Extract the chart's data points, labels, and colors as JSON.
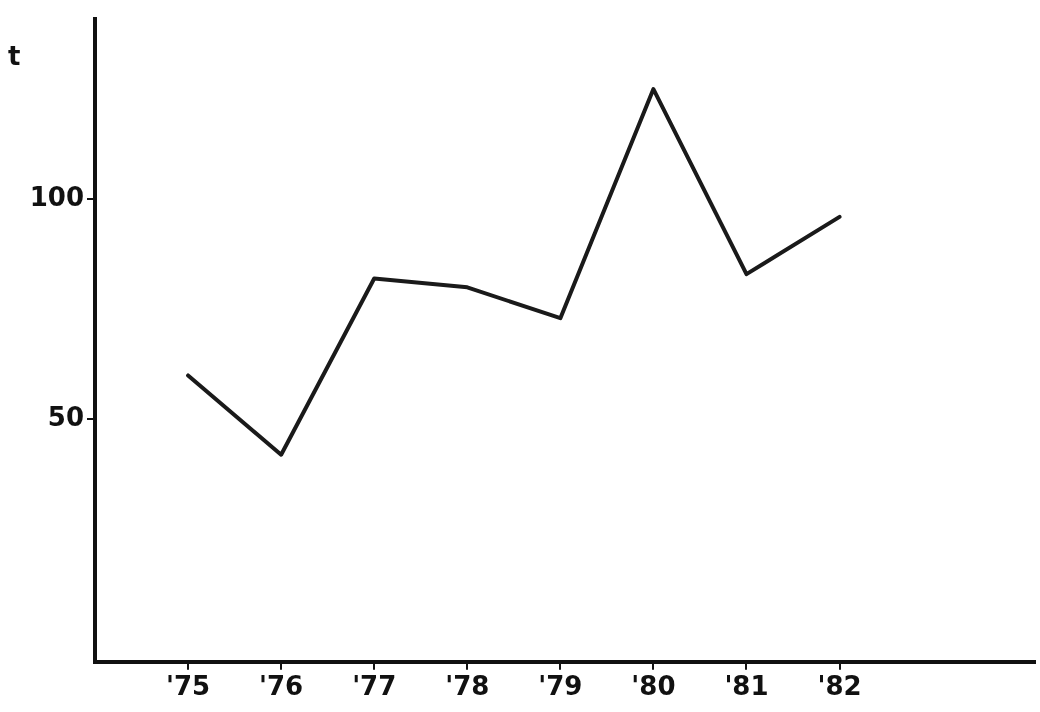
{
  "chart_data": {
    "type": "line",
    "ylabel": "t",
    "x": [
      1975,
      1976,
      1977,
      1978,
      1979,
      1980,
      1981,
      1982
    ],
    "values": [
      60,
      42,
      82,
      80,
      73,
      125,
      83,
      96
    ],
    "color": "#1a1a1a",
    "xlim": [
      1974,
      1984.1
    ],
    "xticks": [
      {
        "value": 1975,
        "label": "'75"
      },
      {
        "value": 1976,
        "label": "'76"
      },
      {
        "value": 1977,
        "label": "'77"
      },
      {
        "value": 1978,
        "label": "'78"
      },
      {
        "value": 1979,
        "label": "'79"
      },
      {
        "value": 1980,
        "label": "'80"
      },
      {
        "value": 1981,
        "label": "'81"
      },
      {
        "value": 1982,
        "label": "'82"
      }
    ],
    "ylim": [
      -5,
      141
    ],
    "yticks": [
      50,
      100
    ],
    "grid": false,
    "legend": false,
    "marker": "none",
    "line_style": "solid"
  }
}
